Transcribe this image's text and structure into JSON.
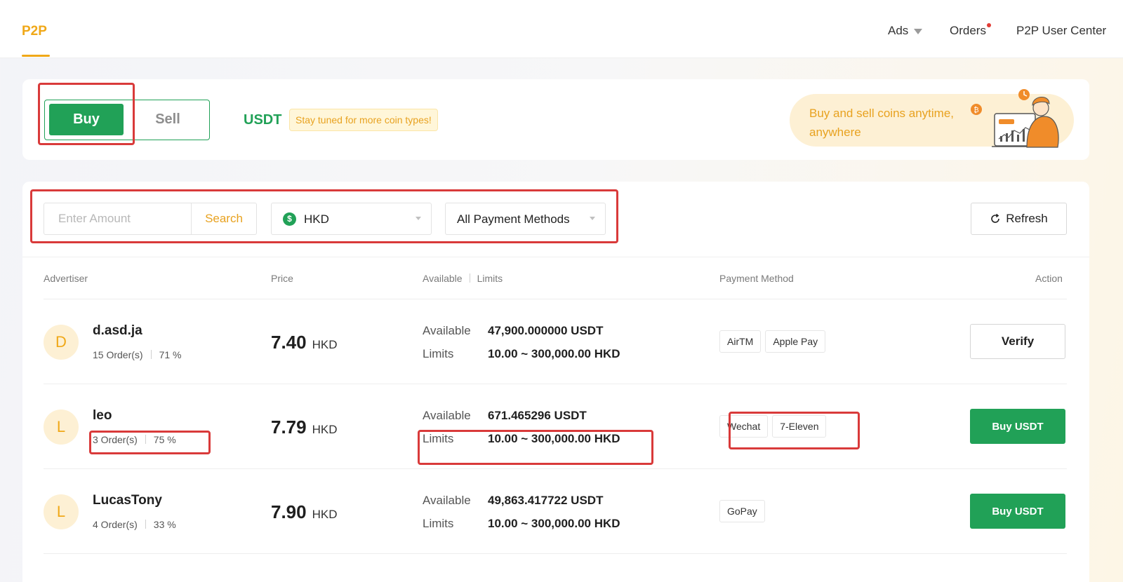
{
  "nav": {
    "brand": "P2P",
    "ads": "Ads",
    "orders": "Orders",
    "user_center": "P2P User Center"
  },
  "trade_panel": {
    "buy_label": "Buy",
    "sell_label": "Sell",
    "coin": "USDT",
    "coin_note": "Stay tuned for more coin types!",
    "promo_text": "Buy and sell coins anytime, anywhere"
  },
  "filters": {
    "amount_placeholder": "Enter Amount",
    "search_label": "Search",
    "currency": "HKD",
    "currency_symbol": "$",
    "payment_method": "All Payment Methods",
    "refresh_label": "Refresh"
  },
  "table": {
    "headers": {
      "advertiser": "Advertiser",
      "price": "Price",
      "available": "Available",
      "limits": "Limits",
      "payment_method": "Payment Method",
      "action": "Action"
    },
    "rows": [
      {
        "initial": "D",
        "name": "d.asd.ja",
        "orders": "15 Order(s)",
        "completion": "71 %",
        "price": "7.40",
        "price_currency": "HKD",
        "available_label": "Available",
        "available": "47,900.000000 USDT",
        "limits_label": "Limits",
        "limits": "10.00 ~ 300,000.00 HKD",
        "payments": [
          "AirTM",
          "Apple Pay"
        ],
        "action": "Verify"
      },
      {
        "initial": "L",
        "name": "leo",
        "orders": "3 Order(s)",
        "completion": "75 %",
        "price": "7.79",
        "price_currency": "HKD",
        "available_label": "Available",
        "available": "671.465296 USDT",
        "limits_label": "Limits",
        "limits": "10.00 ~ 300,000.00 HKD",
        "payments": [
          "Wechat",
          "7-Eleven"
        ],
        "action": "Buy USDT"
      },
      {
        "initial": "L",
        "name": "LucasTony",
        "orders": "4 Order(s)",
        "completion": "33 %",
        "price": "7.90",
        "price_currency": "HKD",
        "available_label": "Available",
        "available": "49,863.417722 USDT",
        "limits_label": "Limits",
        "limits": "10.00 ~ 300,000.00 HKD",
        "payments": [
          "GoPay"
        ],
        "action": "Buy USDT"
      }
    ]
  },
  "colors": {
    "brand": "#f0a818",
    "buy_green": "#21a157",
    "highlight_red": "#d93a3a"
  }
}
